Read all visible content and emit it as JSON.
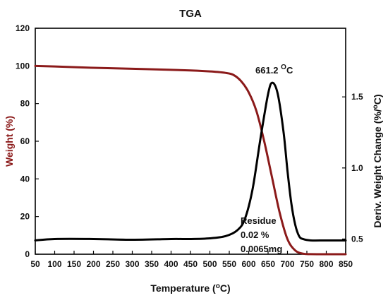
{
  "chart_data": {
    "type": "line",
    "title": "TGA",
    "xlabel": "Temperature (°C)",
    "ylabel_left": "Weight (%)",
    "ylabel_right": "Deriv. Weight Change (%/°C)",
    "xlim": [
      50,
      850
    ],
    "ylim_left": [
      0,
      120
    ],
    "ylim_right": [
      0.393,
      1.983
    ],
    "x_ticks": [
      50,
      100,
      150,
      200,
      250,
      300,
      350,
      400,
      450,
      500,
      550,
      600,
      650,
      700,
      750,
      800,
      850
    ],
    "y_ticks_left": [
      0,
      20,
      40,
      60,
      80,
      100,
      120
    ],
    "y_ticks_right": [
      0.5,
      1.0,
      1.5
    ],
    "y_ticks_right_labels": [
      "0.5",
      "1.0",
      "1.5"
    ],
    "grid": false,
    "colors": {
      "weight": "#8b1a1a",
      "derivative": "#000000",
      "axes": "#000000"
    },
    "series": [
      {
        "axis": "left",
        "x": [
          50,
          100,
          200,
          300,
          400,
          450,
          500,
          520,
          540,
          560,
          580,
          600,
          620,
          640,
          660,
          680,
          700,
          720,
          740,
          760,
          800,
          850
        ],
        "y": [
          100,
          99.7,
          99,
          98.5,
          97.9,
          97.6,
          97.1,
          96.8,
          96.3,
          95.3,
          92,
          86,
          76,
          60,
          41,
          22,
          8,
          2,
          0.3,
          0.05,
          0.02,
          0.02
        ]
      },
      {
        "axis": "right",
        "x": [
          50,
          100,
          200,
          300,
          400,
          450,
          500,
          540,
          570,
          590,
          610,
          630,
          650,
          661.2,
          675,
          690,
          700,
          710,
          720,
          730,
          740,
          760,
          800,
          850
        ],
        "y": [
          0.49,
          0.5,
          0.5,
          0.495,
          0.5,
          0.5,
          0.505,
          0.52,
          0.56,
          0.64,
          0.85,
          1.2,
          1.52,
          1.6,
          1.52,
          1.25,
          0.98,
          0.75,
          0.6,
          0.52,
          0.5,
          0.49,
          0.49,
          0.49
        ]
      }
    ],
    "annotations": {
      "peak_value": "661.2",
      "peak_unit_sup": "O",
      "peak_unit": "C",
      "residue_label": "Residue",
      "residue_percent": "0.02 %",
      "residue_mass": "0.0065mg"
    }
  }
}
